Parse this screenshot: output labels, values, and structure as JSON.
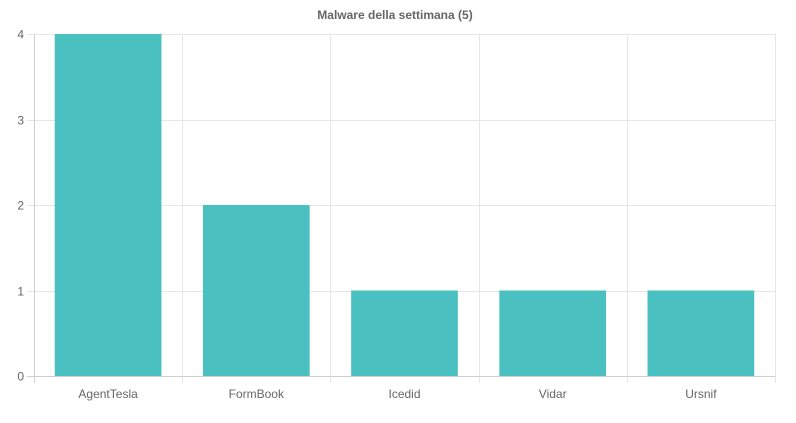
{
  "chart_data": {
    "type": "bar",
    "title": "Malware della settimana (5)",
    "categories": [
      "AgentTesla",
      "FormBook",
      "Icedid",
      "Vidar",
      "Ursnif"
    ],
    "values": [
      4,
      2,
      1,
      1,
      1
    ],
    "ylim": [
      0,
      4
    ],
    "yticks": [
      0,
      1,
      2,
      3,
      4
    ],
    "grid": true,
    "legend": "none",
    "bar_color": "#4bc0c0",
    "grid_color": "#e6e6e6",
    "axis_color": "#cfcfcf",
    "text_color": "#666666"
  }
}
